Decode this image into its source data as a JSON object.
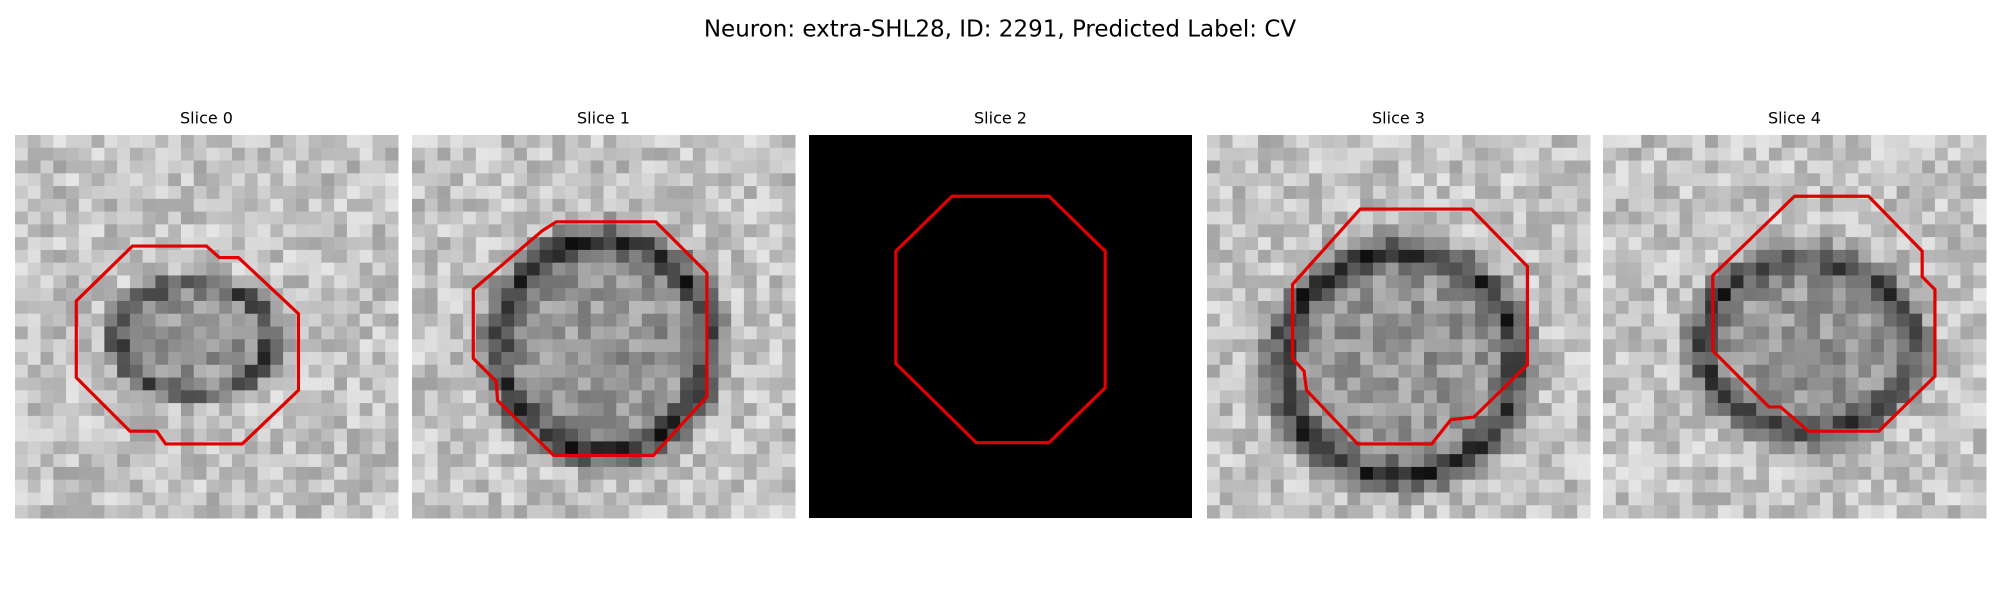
{
  "header": {
    "title": "Neuron: extra-SHL28, ID: 2291, Predicted Label: CV"
  },
  "panels": [
    {
      "title": "Slice 0"
    },
    {
      "title": "Slice 1"
    },
    {
      "title": "Slice 2"
    },
    {
      "title": "Slice 3"
    },
    {
      "title": "Slice 4"
    }
  ]
}
